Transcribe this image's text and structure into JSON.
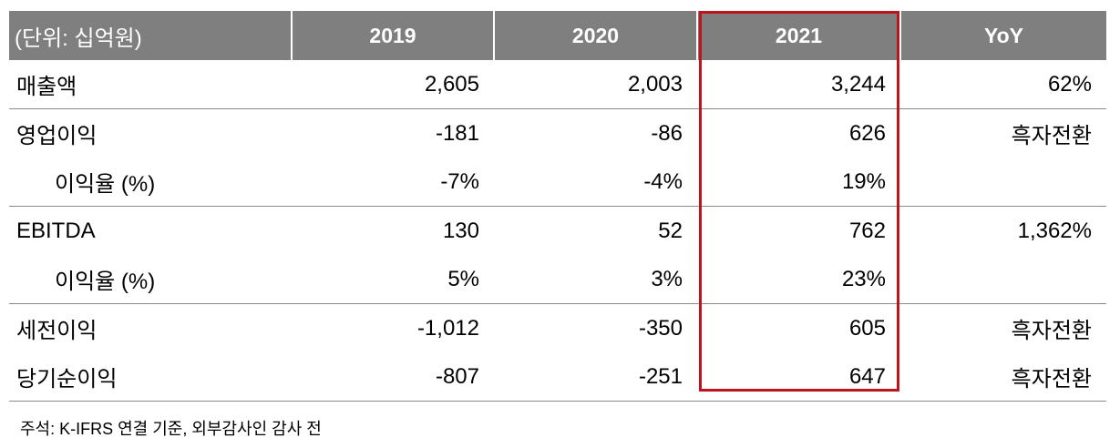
{
  "table": {
    "header": {
      "label": "(단위: 십억원)",
      "cols": [
        "2019",
        "2020",
        "2021",
        "YoY"
      ]
    },
    "rows": [
      {
        "label": "매출액",
        "values": [
          "2,605",
          "2,003",
          "3,244",
          "62%"
        ]
      },
      {
        "label": "영업이익",
        "values": [
          "-181",
          "-86",
          "626",
          "흑자전환"
        ]
      },
      {
        "label": "이익율 (%)",
        "values": [
          "-7%",
          "-4%",
          "19%",
          ""
        ]
      },
      {
        "label": "EBITDA",
        "values": [
          "130",
          "52",
          "762",
          "1,362%"
        ]
      },
      {
        "label": "이익율 (%)",
        "values": [
          "5%",
          "3%",
          "23%",
          ""
        ]
      },
      {
        "label": "세전이익",
        "values": [
          "-1,012",
          "-350",
          "605",
          "흑자전환"
        ]
      },
      {
        "label": "당기순이익",
        "values": [
          "-807",
          "-251",
          "647",
          "흑자전환"
        ]
      }
    ],
    "highlight_color": "#c0141c",
    "header_bg": "#7f7f7f"
  },
  "footnote": "주석: K-IFRS 연결 기준, 외부감사인 감사 전"
}
